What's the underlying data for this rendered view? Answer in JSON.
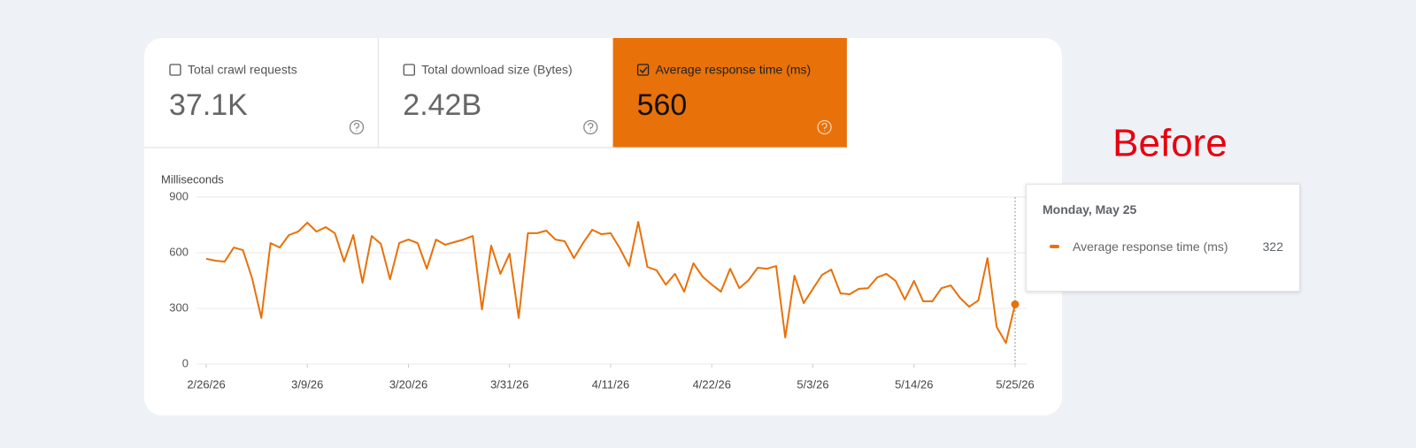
{
  "metrics": [
    {
      "label": "Total crawl requests",
      "value": "37.1K",
      "checked": false
    },
    {
      "label": "Total download size (Bytes)",
      "value": "2.42B",
      "checked": false
    },
    {
      "label": "Average response time (ms)",
      "value": "560",
      "checked": true
    }
  ],
  "annotation": "Before",
  "tooltip": {
    "title": "Monday, May 25"
  },
  "chart_data": {
    "type": "line",
    "y_label": "Milliseconds",
    "x": [
      "2026-02-26",
      "2026-02-27",
      "2026-02-28",
      "2026-03-01",
      "2026-03-02",
      "2026-03-03",
      "2026-03-04",
      "2026-03-05",
      "2026-03-06",
      "2026-03-07",
      "2026-03-08",
      "2026-03-09",
      "2026-03-10",
      "2026-03-11",
      "2026-03-12",
      "2026-03-13",
      "2026-03-14",
      "2026-03-15",
      "2026-03-16",
      "2026-03-17",
      "2026-03-18",
      "2026-03-19",
      "2026-03-20",
      "2026-03-21",
      "2026-03-22",
      "2026-03-23",
      "2026-03-24",
      "2026-03-25",
      "2026-03-26",
      "2026-03-27",
      "2026-03-28",
      "2026-03-29",
      "2026-03-30",
      "2026-03-31",
      "2026-04-01",
      "2026-04-02",
      "2026-04-03",
      "2026-04-04",
      "2026-04-05",
      "2026-04-06",
      "2026-04-07",
      "2026-04-08",
      "2026-04-09",
      "2026-04-10",
      "2026-04-11",
      "2026-04-12",
      "2026-04-13",
      "2026-04-14",
      "2026-04-15",
      "2026-04-16",
      "2026-04-17",
      "2026-04-18",
      "2026-04-19",
      "2026-04-20",
      "2026-04-21",
      "2026-04-22",
      "2026-04-23",
      "2026-04-24",
      "2026-04-25",
      "2026-04-26",
      "2026-04-27",
      "2026-04-28",
      "2026-04-29",
      "2026-04-30",
      "2026-05-01",
      "2026-05-02",
      "2026-05-03",
      "2026-05-04",
      "2026-05-05",
      "2026-05-06",
      "2026-05-07",
      "2026-05-08",
      "2026-05-09",
      "2026-05-10",
      "2026-05-11",
      "2026-05-12",
      "2026-05-13",
      "2026-05-14",
      "2026-05-15",
      "2026-05-16",
      "2026-05-17",
      "2026-05-18",
      "2026-05-19",
      "2026-05-20",
      "2026-05-21",
      "2026-05-22",
      "2026-05-23",
      "2026-05-24",
      "2026-05-25"
    ],
    "xticks": [
      {
        "value": "2026-02-26",
        "label": "2/26/26"
      },
      {
        "value": "2026-03-09",
        "label": "3/9/26"
      },
      {
        "value": "2026-03-20",
        "label": "3/20/26"
      },
      {
        "value": "2026-03-31",
        "label": "3/31/26"
      },
      {
        "value": "2026-04-11",
        "label": "4/11/26"
      },
      {
        "value": "2026-04-22",
        "label": "4/22/26"
      },
      {
        "value": "2026-05-03",
        "label": "5/3/26"
      },
      {
        "value": "2026-05-14",
        "label": "5/14/26"
      },
      {
        "value": "2026-05-25",
        "label": "5/25/26"
      }
    ],
    "series": [
      {
        "name": "Average response time (ms)",
        "color": "#e8710a",
        "values": [
          567,
          557,
          552,
          628,
          614,
          462,
          248,
          652,
          628,
          695,
          714,
          762,
          714,
          738,
          705,
          552,
          695,
          438,
          690,
          648,
          457,
          652,
          671,
          652,
          514,
          671,
          643,
          657,
          671,
          690,
          295,
          638,
          486,
          595,
          248,
          705,
          705,
          719,
          671,
          662,
          571,
          652,
          724,
          700,
          705,
          624,
          528,
          766,
          524,
          505,
          428,
          486,
          390,
          543,
          471,
          428,
          390,
          514,
          409,
          452,
          519,
          514,
          528,
          143,
          476,
          328,
          405,
          481,
          509,
          381,
          376,
          405,
          409,
          467,
          486,
          448,
          348,
          448,
          338,
          338,
          409,
          424,
          357,
          309,
          343,
          571,
          200,
          114,
          322
        ]
      }
    ],
    "ylim": [
      0,
      900
    ],
    "yticks": [
      0,
      300,
      600,
      900
    ],
    "grid": true
  }
}
